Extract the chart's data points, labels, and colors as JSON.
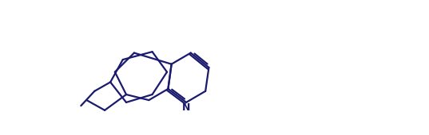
{
  "bg_color": "#ffffff",
  "line_color": "#1a1a6e",
  "line_width": 1.6,
  "figsize": [
    5.37,
    1.7
  ],
  "dpi": 100,
  "xlim": [
    -1.5,
    11.0
  ],
  "ylim": [
    -2.8,
    3.2
  ]
}
